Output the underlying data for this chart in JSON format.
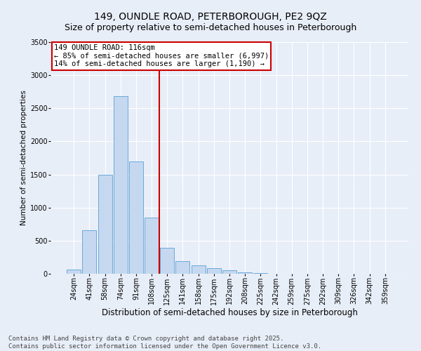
{
  "title": "149, OUNDLE ROAD, PETERBOROUGH, PE2 9QZ",
  "subtitle": "Size of property relative to semi-detached houses in Peterborough",
  "xlabel": "Distribution of semi-detached houses by size in Peterborough",
  "ylabel": "Number of semi-detached properties",
  "categories": [
    "24sqm",
    "41sqm",
    "58sqm",
    "74sqm",
    "91sqm",
    "108sqm",
    "125sqm",
    "141sqm",
    "158sqm",
    "175sqm",
    "192sqm",
    "208sqm",
    "225sqm",
    "242sqm",
    "259sqm",
    "275sqm",
    "292sqm",
    "309sqm",
    "326sqm",
    "342sqm",
    "359sqm"
  ],
  "values": [
    65,
    660,
    1500,
    2680,
    1700,
    850,
    390,
    195,
    130,
    90,
    50,
    25,
    10,
    5,
    2,
    1,
    0,
    0,
    0,
    0,
    0
  ],
  "bar_color": "#c5d8f0",
  "bar_edge_color": "#5a9fd4",
  "vline_color": "#cc0000",
  "annotation_text": "149 OUNDLE ROAD: 116sqm\n← 85% of semi-detached houses are smaller (6,997)\n14% of semi-detached houses are larger (1,190) →",
  "annotation_box_color": "#ffffff",
  "annotation_box_edge_color": "#cc0000",
  "ylim": [
    0,
    3500
  ],
  "yticks": [
    0,
    500,
    1000,
    1500,
    2000,
    2500,
    3000,
    3500
  ],
  "bg_color": "#e8eef8",
  "plot_bg_color": "#e8eef8",
  "footer_line1": "Contains HM Land Registry data © Crown copyright and database right 2025.",
  "footer_line2": "Contains public sector information licensed under the Open Government Licence v3.0.",
  "title_fontsize": 10,
  "subtitle_fontsize": 9,
  "xlabel_fontsize": 8.5,
  "ylabel_fontsize": 7.5,
  "tick_fontsize": 7,
  "annotation_fontsize": 7.5,
  "footer_fontsize": 6.5
}
